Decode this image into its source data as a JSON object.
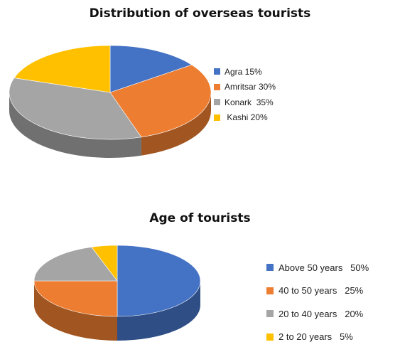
{
  "chart_data": [
    {
      "type": "pie",
      "title": "Distribution of overseas tourists",
      "legend_position": "right",
      "three_d": true,
      "series": [
        {
          "label": "Agra 15%",
          "value": 15,
          "color": "#4472C4"
        },
        {
          "label": "Amritsar 30%",
          "value": 30,
          "color": "#ED7D31"
        },
        {
          "label": "Konark  35%",
          "value": 35,
          "color": "#A5A5A5"
        },
        {
          "label": " Kashi 20%",
          "value": 20,
          "color": "#FFC000"
        }
      ]
    },
    {
      "type": "pie",
      "title": "Age of tourists",
      "legend_position": "right",
      "three_d": true,
      "series": [
        {
          "label": "Above 50 years   50%",
          "value": 50,
          "color": "#4472C4"
        },
        {
          "label": "40 to 50 years   25%",
          "value": 25,
          "color": "#ED7D31"
        },
        {
          "label": "20 to 40 years   20%",
          "value": 20,
          "color": "#A5A5A5"
        },
        {
          "label": "2 to 20 years   5%",
          "value": 5,
          "color": "#FFC000"
        }
      ]
    }
  ]
}
